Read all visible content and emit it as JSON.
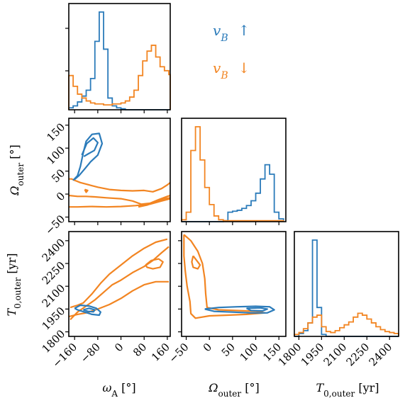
{
  "colors": {
    "up": "#2b7bba",
    "down": "#f28522"
  },
  "legend": [
    {
      "label": "vB ↑",
      "sub_html": "",
      "series": "up"
    },
    {
      "label": "vB ↓",
      "series": "down"
    }
  ],
  "labels": {
    "omega_A": "ωA [°]",
    "Omega_outer": "Ωouter [°]",
    "T0_outer": "T0,outer [yr]"
  },
  "chart_data": {
    "type": "corner",
    "parameters": [
      {
        "name": "ωA [°]",
        "range": [
          -180,
          170
        ],
        "ticks": [
          -160,
          -80,
          0,
          80,
          160
        ],
        "tick_labels": [
          "−160",
          "−80",
          "0",
          "80",
          "160"
        ]
      },
      {
        "name": "Ωouter [°]",
        "range": [
          -60,
          165
        ],
        "ticks": [
          -50,
          0,
          50,
          100,
          150
        ],
        "tick_labels": [
          "−50",
          "0",
          "50",
          "100",
          "150"
        ]
      },
      {
        "name": "T0,outer [yr]",
        "range": [
          1770,
          2460
        ],
        "ticks": [
          1800,
          1950,
          2100,
          2250,
          2400
        ],
        "tick_labels": [
          "1800",
          "1950",
          "2100",
          "2250",
          "2400"
        ]
      }
    ],
    "series": [
      {
        "name": "vB ↑",
        "color": "#2b7bba"
      },
      {
        "name": "vB ↓",
        "color": "#f28522"
      }
    ],
    "histograms": {
      "omega_A": {
        "edges": [
          -180,
          -165,
          -150,
          -135,
          -120,
          -105,
          -90,
          -75,
          -60,
          -45,
          -30,
          -15,
          0,
          15,
          30,
          45,
          60,
          75,
          90,
          105,
          120,
          135,
          150,
          165,
          170
        ],
        "up": [
          0.02,
          0.04,
          0.08,
          0.14,
          0.2,
          0.32,
          0.7,
          1.0,
          0.62,
          0.12,
          0.04,
          0.02,
          0.01,
          0,
          0,
          0,
          0,
          0,
          0,
          0,
          0,
          0,
          0,
          0
        ],
        "down": [
          0.35,
          0.24,
          0.16,
          0.12,
          0.09,
          0.07,
          0.06,
          0.06,
          0.05,
          0.05,
          0.06,
          0.06,
          0.07,
          0.09,
          0.13,
          0.2,
          0.35,
          0.5,
          0.6,
          0.66,
          0.54,
          0.44,
          0.4,
          0.36
        ]
      },
      "Omega_outer": {
        "edges": [
          -60,
          -50,
          -40,
          -30,
          -20,
          -10,
          0,
          10,
          20,
          30,
          40,
          50,
          60,
          70,
          80,
          90,
          100,
          110,
          120,
          130,
          140,
          150,
          160
        ],
        "up": [
          0,
          0,
          0,
          0,
          0,
          0,
          0,
          0,
          0,
          0.01,
          0.1,
          0.11,
          0.12,
          0.14,
          0.17,
          0.22,
          0.3,
          0.45,
          0.6,
          0.5,
          0.1,
          0.03
        ],
        "down": [
          0.02,
          0.1,
          0.75,
          1.0,
          0.65,
          0.36,
          0.18,
          0.06,
          0.02,
          0.01,
          0.01,
          0.01,
          0.01,
          0.01,
          0.01,
          0.01,
          0.01,
          0.01,
          0.01,
          0.01,
          0.01,
          0.01
        ]
      },
      "T0_outer": {
        "edges": [
          1770,
          1800,
          1830,
          1860,
          1890,
          1920,
          1950,
          1980,
          2010,
          2040,
          2070,
          2100,
          2130,
          2160,
          2190,
          2220,
          2250,
          2280,
          2310,
          2340,
          2370,
          2400,
          2430,
          2460
        ],
        "up": [
          0,
          0.03,
          0.06,
          0.14,
          1.0,
          0.3,
          0.02,
          0,
          0,
          0,
          0,
          0,
          0,
          0,
          0,
          0,
          0,
          0,
          0,
          0,
          0,
          0,
          0
        ],
        "down": [
          0.02,
          0.04,
          0.08,
          0.14,
          0.2,
          0.22,
          0.1,
          0.05,
          0.04,
          0.06,
          0.09,
          0.12,
          0.15,
          0.2,
          0.24,
          0.22,
          0.18,
          0.14,
          0.1,
          0.07,
          0.05,
          0.04,
          0.03
        ]
      }
    },
    "contours": {
      "Omega_vs_omega": {
        "up": [
          [
            [
              -165,
              30
            ],
            [
              -150,
              40
            ],
            [
              -140,
              60
            ],
            [
              -130,
              90
            ],
            [
              -120,
              115
            ],
            [
              -100,
              130
            ],
            [
              -75,
              132
            ],
            [
              -65,
              110
            ],
            [
              -80,
              85
            ],
            [
              -105,
              70
            ],
            [
              -125,
              55
            ],
            [
              -145,
              40
            ],
            [
              -160,
              32
            ]
          ],
          [
            [
              -135,
              85
            ],
            [
              -118,
              110
            ],
            [
              -95,
              122
            ],
            [
              -80,
              112
            ],
            [
              -92,
              95
            ],
            [
              -112,
              88
            ],
            [
              -128,
              82
            ]
          ]
        ],
        "down": [
          [
            [
              -180,
              33
            ],
            [
              -170,
              33
            ],
            [
              -160,
              30
            ],
            [
              -140,
              25
            ],
            [
              -110,
              20
            ],
            [
              -80,
              15
            ],
            [
              -40,
              10
            ],
            [
              0,
              8
            ],
            [
              40,
              7
            ],
            [
              80,
              8
            ],
            [
              110,
              5
            ],
            [
              140,
              12
            ],
            [
              160,
              20
            ],
            [
              170,
              25
            ]
          ],
          [
            [
              -180,
              -28
            ],
            [
              -150,
              -28
            ],
            [
              -100,
              -27
            ],
            [
              -50,
              -28
            ],
            [
              0,
              -27
            ],
            [
              50,
              -25
            ],
            [
              100,
              -22
            ],
            [
              140,
              -15
            ],
            [
              170,
              -10
            ]
          ],
          [
            [
              -180,
              -3
            ],
            [
              -150,
              -5
            ],
            [
              -120,
              -5
            ],
            [
              -90,
              -6
            ],
            [
              -50,
              -8
            ],
            [
              0,
              -10
            ],
            [
              40,
              -15
            ],
            [
              70,
              -22
            ],
            [
              100,
              -20
            ],
            [
              130,
              -12
            ],
            [
              160,
              -5
            ],
            [
              170,
              -3
            ]
          ],
          [
            [
              60,
              -28
            ],
            [
              90,
              -24
            ],
            [
              120,
              -17
            ],
            [
              150,
              -10
            ],
            [
              170,
              -8
            ]
          ],
          [
            [
              -125,
              10
            ],
            [
              -120,
              4
            ],
            [
              -115,
              8
            ],
            [
              -125,
              10
            ]
          ]
        ]
      },
      "T0_vs_omega": {
        "up": [
          [
            [
              -160,
              1955
            ],
            [
              -140,
              1975
            ],
            [
              -110,
              1970
            ],
            [
              -85,
              1955
            ],
            [
              -70,
              1930
            ],
            [
              -75,
              1910
            ],
            [
              -100,
              1915
            ],
            [
              -125,
              1930
            ],
            [
              -150,
              1945
            ],
            [
              -160,
              1955
            ]
          ],
          [
            [
              -130,
              1945
            ],
            [
              -110,
              1955
            ],
            [
              -90,
              1945
            ],
            [
              -95,
              1932
            ],
            [
              -115,
              1935
            ],
            [
              -130,
              1945
            ]
          ]
        ],
        "down": [
          [
            [
              -175,
              1880
            ],
            [
              -150,
              1930
            ],
            [
              -120,
              1970
            ],
            [
              -90,
              2010
            ],
            [
              -60,
              2060
            ],
            [
              -30,
              2110
            ],
            [
              0,
              2140
            ],
            [
              40,
              2190
            ],
            [
              80,
              2230
            ],
            [
              110,
              2270
            ],
            [
              140,
              2320
            ],
            [
              165,
              2360
            ]
          ],
          [
            [
              -175,
              1960
            ],
            [
              -150,
              1975
            ],
            [
              -130,
              1990
            ],
            [
              -100,
              2050
            ],
            [
              -70,
              2120
            ],
            [
              -40,
              2180
            ],
            [
              0,
              2240
            ],
            [
              40,
              2300
            ],
            [
              80,
              2350
            ],
            [
              120,
              2390
            ],
            [
              160,
              2410
            ]
          ],
          [
            [
              -180,
              1900
            ],
            [
              -150,
              1915
            ],
            [
              -120,
              1925
            ],
            [
              -80,
              1950
            ],
            [
              -40,
              1980
            ],
            [
              0,
              2020
            ],
            [
              40,
              2070
            ],
            [
              80,
              2110
            ],
            [
              120,
              2130
            ],
            [
              165,
              2130
            ]
          ],
          [
            [
              85,
              2240
            ],
            [
              105,
              2270
            ],
            [
              130,
              2280
            ],
            [
              145,
              2260
            ],
            [
              135,
              2225
            ],
            [
              110,
              2215
            ],
            [
              90,
              2225
            ],
            [
              85,
              2240
            ]
          ]
        ]
      },
      "T0_vs_Omega": {
        "up": [
          [
            [
              -10,
              1950
            ],
            [
              20,
              1960
            ],
            [
              60,
              1965
            ],
            [
              100,
              1968
            ],
            [
              130,
              1965
            ],
            [
              140,
              1945
            ],
            [
              125,
              1925
            ],
            [
              90,
              1925
            ],
            [
              50,
              1930
            ],
            [
              10,
              1935
            ],
            [
              -10,
              1950
            ]
          ],
          [
            [
              80,
              1955
            ],
            [
              110,
              1958
            ],
            [
              125,
              1950
            ],
            [
              115,
              1938
            ],
            [
              90,
              1940
            ],
            [
              80,
              1955
            ]
          ]
        ],
        "down": [
          [
            [
              -55,
              2440
            ],
            [
              -40,
              2400
            ],
            [
              -25,
              2330
            ],
            [
              -15,
              2250
            ],
            [
              -10,
              2150
            ],
            [
              -8,
              2050
            ],
            [
              -5,
              1960
            ],
            [
              20,
              1945
            ],
            [
              60,
              1940
            ],
            [
              100,
              1935
            ],
            [
              120,
              1925
            ],
            [
              80,
              1915
            ],
            [
              40,
              1910
            ],
            [
              0,
              1905
            ],
            [
              -30,
              1890
            ],
            [
              -40,
              1920
            ],
            [
              -42,
              2000
            ],
            [
              -48,
              2100
            ],
            [
              -52,
              2200
            ],
            [
              -55,
              2300
            ],
            [
              -55,
              2440
            ]
          ],
          [
            [
              -35,
              2300
            ],
            [
              -25,
              2260
            ],
            [
              -20,
              2240
            ],
            [
              -25,
              2215
            ],
            [
              -35,
              2225
            ],
            [
              -38,
              2260
            ],
            [
              -35,
              2300
            ]
          ]
        ]
      }
    }
  }
}
